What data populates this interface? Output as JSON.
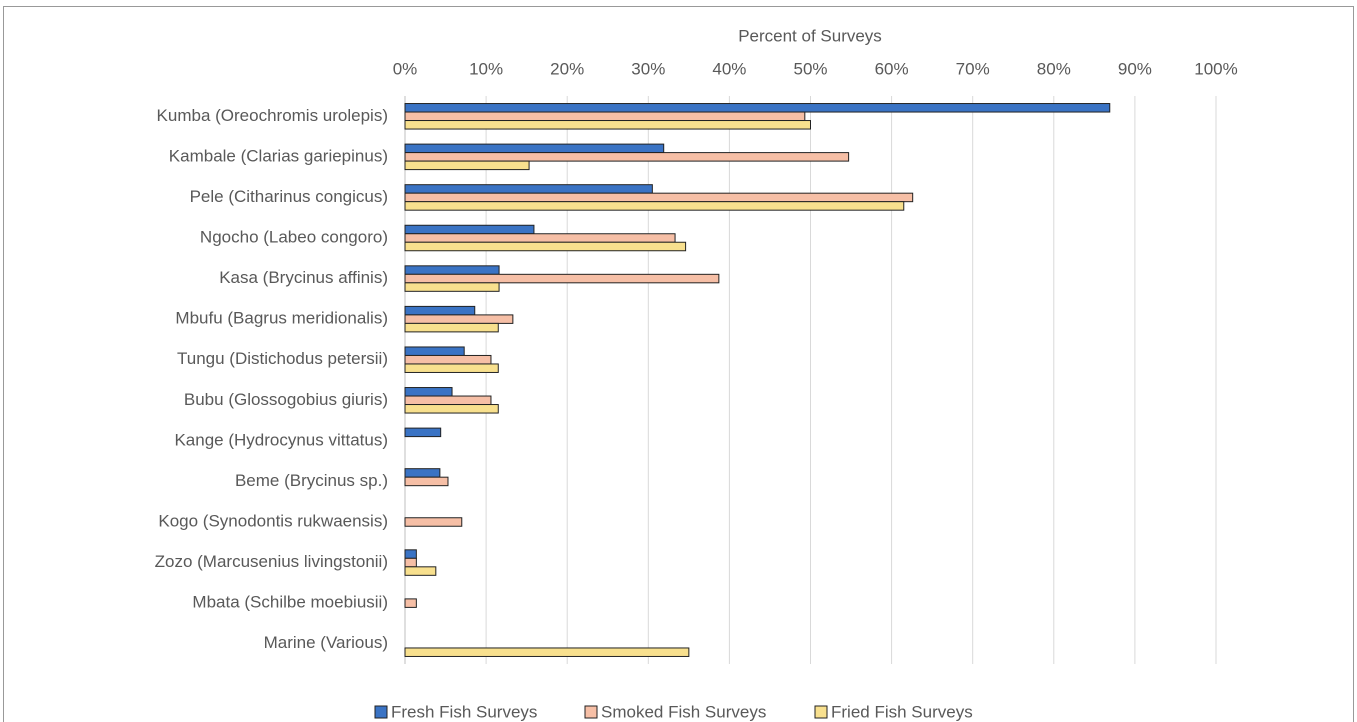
{
  "chart_data": {
    "type": "hbar",
    "x_label": "Percent of Surveys",
    "categories": [
      "Kumba (Oreochromis urolepis)",
      "Kambale (Clarias gariepinus)",
      "Pele (Citharinus congicus)",
      "Ngocho (Labeo congoro)",
      "Kasa (Brycinus affinis)",
      "Mbufu (Bagrus meridionalis)",
      "Tungu (Distichodus petersii)",
      "Bubu (Glossogobius giuris)",
      "Kange (Hydrocynus vittatus)",
      "Beme (Brycinus sp.)",
      "Kogo (Synodontis rukwaensis)",
      "Zozo (Marcusenius livingstonii)",
      "Mbata (Schilbe moebiusii)",
      "Marine (Various)"
    ],
    "series": [
      {
        "name": "Fresh Fish Surveys",
        "color": "#3a73c4",
        "values": [
          86.9,
          31.9,
          30.5,
          15.9,
          11.6,
          8.6,
          7.3,
          5.8,
          4.4,
          4.3,
          0,
          1.4,
          0,
          0
        ]
      },
      {
        "name": "Smoked Fish Surveys",
        "color": "#f6bfa6",
        "values": [
          49.3,
          54.7,
          62.6,
          33.3,
          38.7,
          13.3,
          10.6,
          10.6,
          0,
          5.3,
          7.0,
          1.4,
          1.4,
          0
        ]
      },
      {
        "name": "Fried Fish Surveys",
        "color": "#f8e08e",
        "values": [
          50.0,
          15.3,
          61.5,
          34.6,
          11.6,
          11.5,
          11.5,
          11.5,
          0,
          0,
          0,
          3.8,
          0,
          35.0
        ]
      }
    ],
    "xlim": [
      0,
      100
    ],
    "xticks": [
      {
        "value": 0,
        "label": "0%"
      },
      {
        "value": 10,
        "label": "10%"
      },
      {
        "value": 20,
        "label": "20%"
      },
      {
        "value": 30,
        "label": "30%"
      },
      {
        "value": 40,
        "label": "40%"
      },
      {
        "value": 50,
        "label": "50%"
      },
      {
        "value": 60,
        "label": "60%"
      },
      {
        "value": 70,
        "label": "70%"
      },
      {
        "value": 80,
        "label": "80%"
      },
      {
        "value": 90,
        "label": "90%"
      },
      {
        "value": 100,
        "label": "100%"
      }
    ],
    "grid": true,
    "legend": "bottom"
  }
}
